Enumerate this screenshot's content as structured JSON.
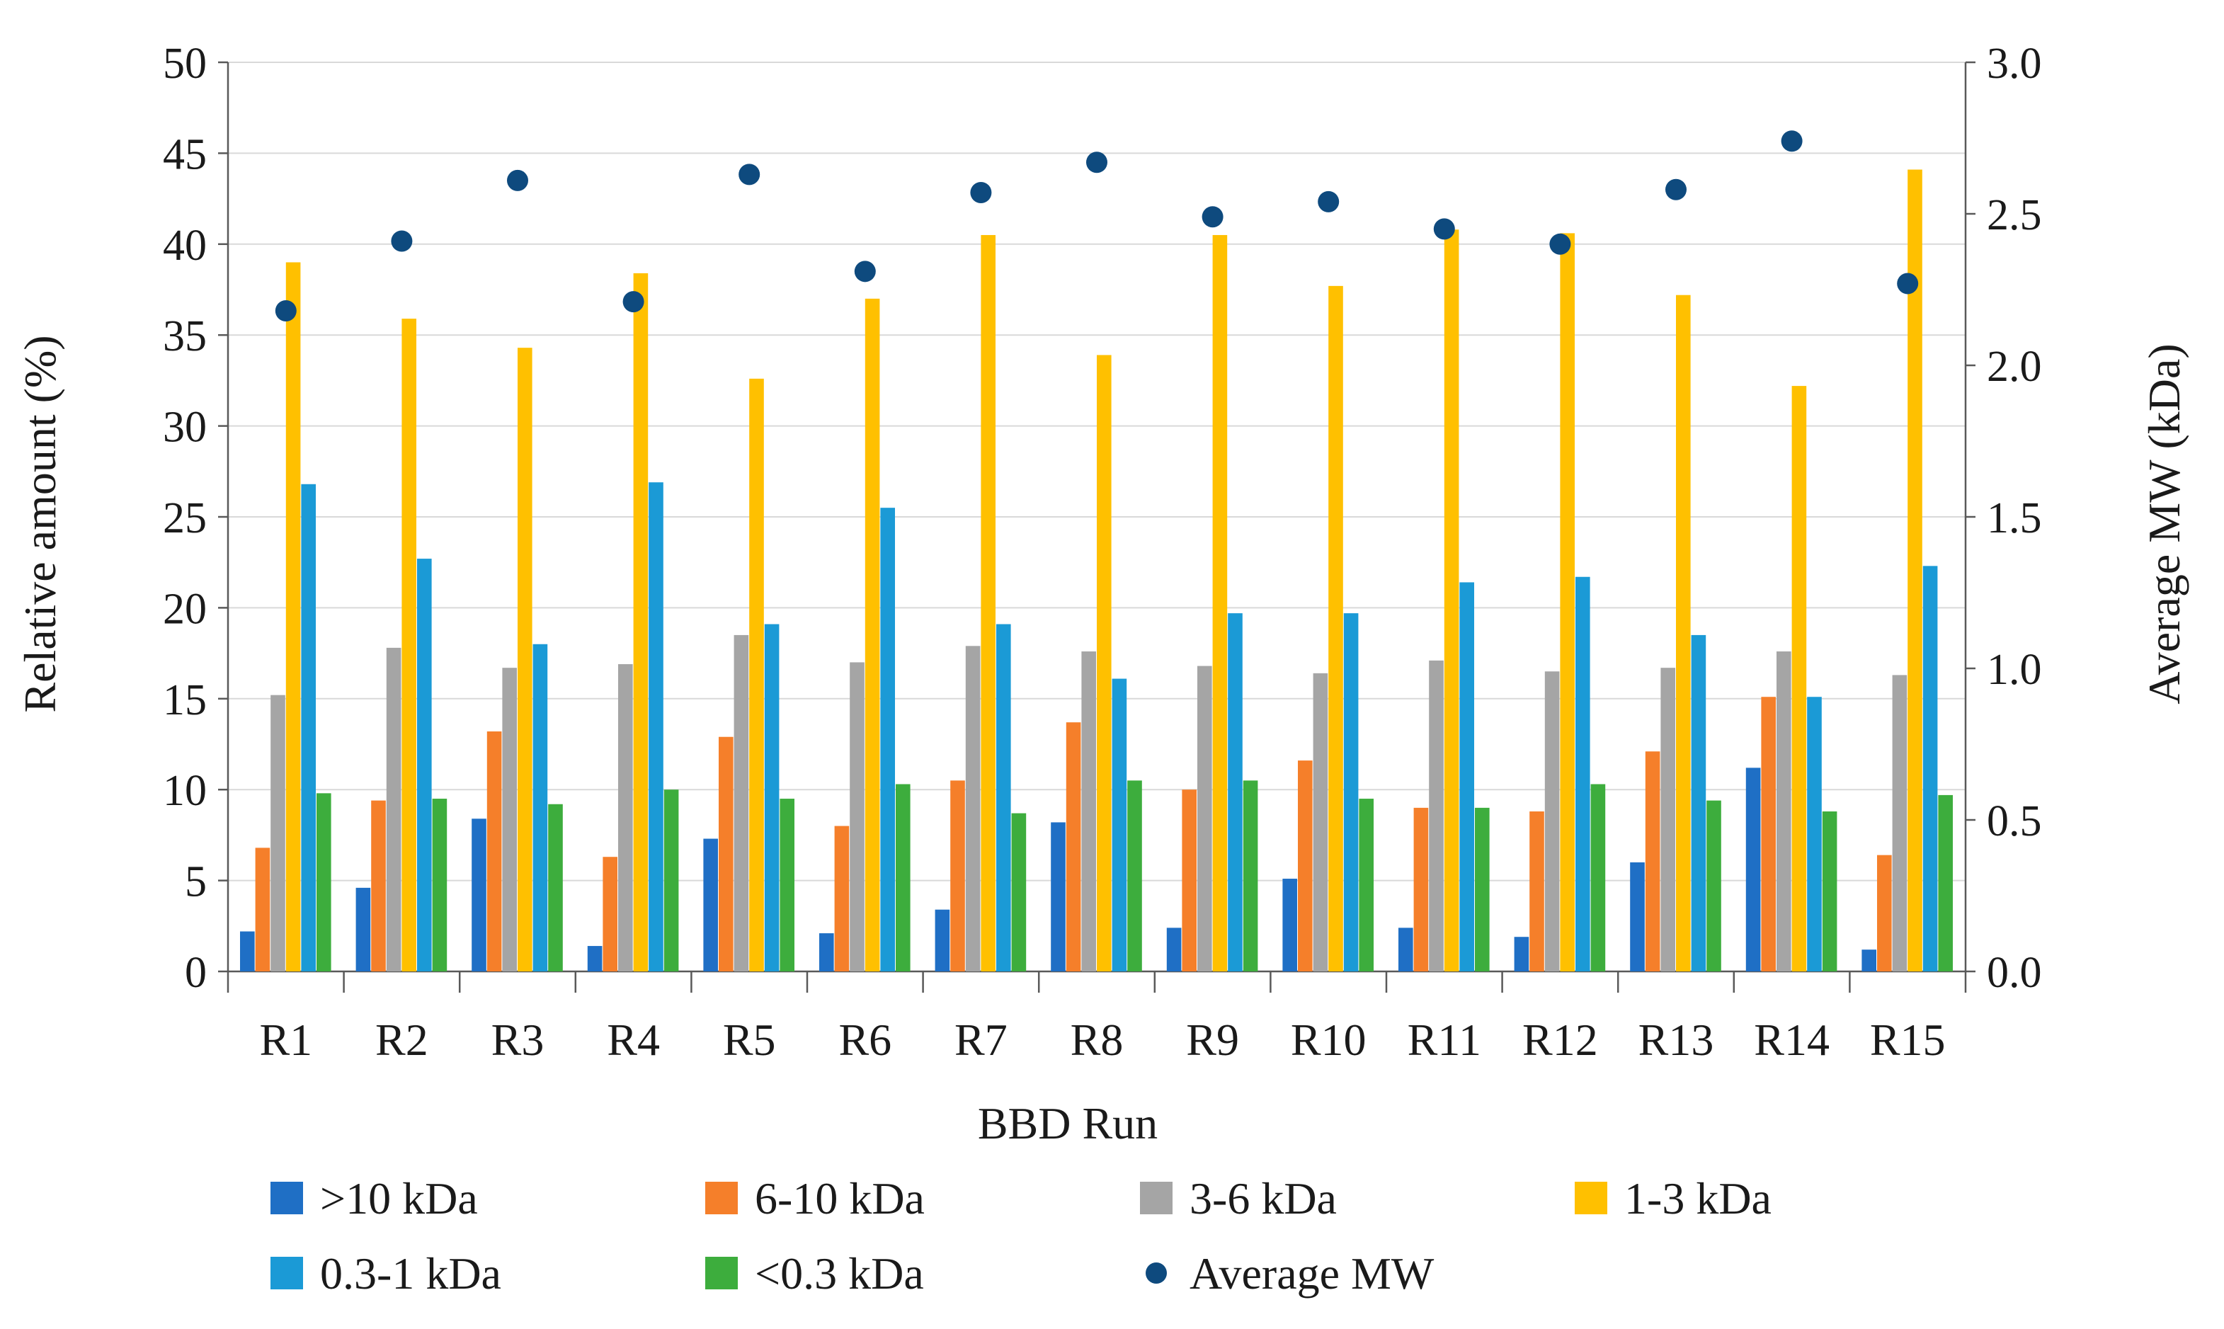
{
  "chart_data": {
    "type": "bar",
    "title": "",
    "xlabel": "BBD Run",
    "ylabel": "Relative amount (%)",
    "y2label": "Average MW (kDa)",
    "ylim": [
      0,
      50
    ],
    "y2lim": [
      0,
      3.0
    ],
    "yticks": [
      "0",
      "5",
      "10",
      "15",
      "20",
      "25",
      "30",
      "35",
      "40",
      "45",
      "50"
    ],
    "y2ticks": [
      "0.0",
      "0.5",
      "1.0",
      "1.5",
      "2.0",
      "2.5",
      "3.0"
    ],
    "grid": true,
    "legend_position": "bottom",
    "categories": [
      "R1",
      "R2",
      "R3",
      "R4",
      "R5",
      "R6",
      "R7",
      "R8",
      "R9",
      "R10",
      "R11",
      "R12",
      "R13",
      "R14",
      "R15"
    ],
    "series": [
      {
        "name": ">10 kDa",
        "color": "#1f6fc5",
        "values": [
          2.2,
          4.6,
          8.4,
          1.4,
          7.3,
          2.1,
          3.4,
          8.2,
          2.4,
          5.1,
          2.4,
          1.9,
          6.0,
          11.2,
          1.2
        ]
      },
      {
        "name": "6-10 kDa",
        "color": "#f57f2a",
        "values": [
          6.8,
          9.4,
          13.2,
          6.3,
          12.9,
          8.0,
          10.5,
          13.7,
          10.0,
          11.6,
          9.0,
          8.8,
          12.1,
          15.1,
          6.4
        ]
      },
      {
        "name": "3-6 kDa",
        "color": "#a5a5a5",
        "values": [
          15.2,
          17.8,
          16.7,
          16.9,
          18.5,
          17.0,
          17.9,
          17.6,
          16.8,
          16.4,
          17.1,
          16.5,
          16.7,
          17.6,
          16.3
        ]
      },
      {
        "name": "1-3 kDa",
        "color": "#ffc000",
        "values": [
          39.0,
          35.9,
          34.3,
          38.4,
          32.6,
          37.0,
          40.5,
          33.9,
          40.5,
          37.7,
          40.8,
          40.6,
          37.2,
          32.2,
          44.1
        ]
      },
      {
        "name": "0.3-1 kDa",
        "color": "#1b9ad6",
        "values": [
          26.8,
          22.7,
          18.0,
          26.9,
          19.1,
          25.5,
          19.1,
          16.1,
          19.7,
          19.7,
          21.4,
          21.7,
          18.5,
          15.1,
          22.3
        ]
      },
      {
        "name": "<0.3 kDa",
        "color": "#3dad3d",
        "values": [
          9.8,
          9.5,
          9.2,
          10.0,
          9.5,
          10.3,
          8.7,
          10.5,
          10.5,
          9.5,
          9.0,
          10.3,
          9.4,
          8.8,
          9.7
        ]
      }
    ],
    "line_series": {
      "name": "Average MW",
      "axis": "right",
      "color": "#0e4a7e",
      "values": [
        2.18,
        2.41,
        2.61,
        2.21,
        2.63,
        2.31,
        2.57,
        2.67,
        2.49,
        2.54,
        2.45,
        2.4,
        2.58,
        2.74,
        2.27
      ]
    }
  }
}
